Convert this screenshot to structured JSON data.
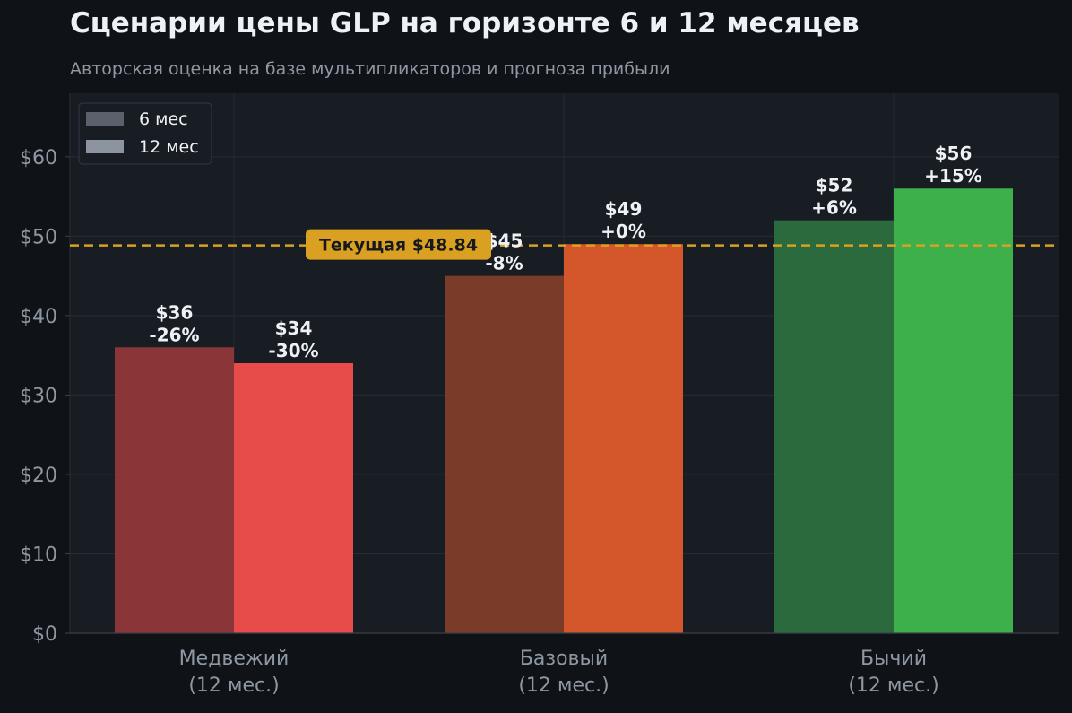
{
  "title": "Сценарии цены GLP на горизонте 6 и 12 месяцев",
  "subtitle": "Авторская оценка на базе мультипликаторов и прогноза прибыли",
  "chart_data": {
    "type": "bar",
    "categories": [
      [
        "Медвежий",
        "(12 мес.)"
      ],
      [
        "Базовый",
        "(12 мес.)"
      ],
      [
        "Бычий",
        "(12 мес.)"
      ]
    ],
    "series": [
      {
        "name": "6 мес",
        "values": [
          36,
          45,
          52
        ],
        "labels": [
          "$36",
          "$45",
          "$52"
        ],
        "changes": [
          "-26%",
          "-8%",
          "+6%"
        ],
        "colors": [
          "#8a3639",
          "#7b3b29",
          "#2a6a3c"
        ]
      },
      {
        "name": "12 мес",
        "values": [
          34,
          49,
          56
        ],
        "labels": [
          "$34",
          "$49",
          "$56"
        ],
        "changes": [
          "-30%",
          "+0%",
          "+15%"
        ],
        "colors": [
          "#e84c4a",
          "#d4572b",
          "#3daf4b"
        ]
      }
    ],
    "legend": {
      "position": "top-left",
      "colors": [
        "#5b606c",
        "#8c959f"
      ]
    },
    "reference_line": {
      "value": 48.84,
      "label": "Текущая $48.84",
      "color": "#d9a021"
    },
    "y_ticks": [
      0,
      10,
      20,
      30,
      40,
      50,
      60
    ],
    "y_tick_labels": [
      "$0",
      "$10",
      "$20",
      "$30",
      "$40",
      "$50",
      "$60"
    ],
    "ylim": [
      0,
      68
    ],
    "grid": true,
    "colors": {
      "background": "#0f1317",
      "plot_background": "#181c23",
      "grid": "#262b34",
      "tick_text": "#8f97a3",
      "value_text": "#eef1f5"
    }
  }
}
